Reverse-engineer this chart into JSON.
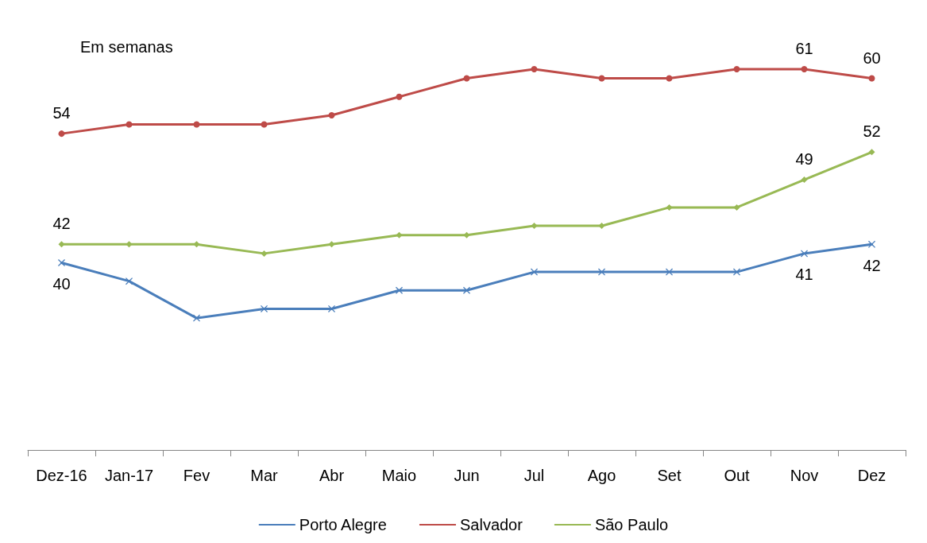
{
  "chart_data": {
    "type": "line",
    "categories": [
      "Dez-16",
      "Jan-17",
      "Fev",
      "Mar",
      "Abr",
      "Maio",
      "Jun",
      "Jul",
      "Ago",
      "Set",
      "Out",
      "Nov",
      "Dez"
    ],
    "series": [
      {
        "name": "Porto Alegre",
        "color": "#4a7ebb",
        "marker": "cross",
        "values": [
          40,
          38,
          34,
          35,
          35,
          37,
          37,
          39,
          39,
          39,
          39,
          41,
          42
        ],
        "value_labels": [
          "40",
          null,
          null,
          null,
          null,
          null,
          null,
          null,
          null,
          null,
          null,
          "41",
          "42"
        ]
      },
      {
        "name": "Salvador",
        "color": "#be4b48",
        "marker": "circle",
        "values": [
          54,
          55,
          55,
          55,
          56,
          58,
          60,
          61,
          60,
          60,
          61,
          61,
          60
        ],
        "value_labels": [
          "54",
          null,
          null,
          null,
          null,
          null,
          null,
          null,
          null,
          null,
          null,
          "61",
          "60"
        ]
      },
      {
        "name": "São Paulo",
        "color": "#98b954",
        "marker": "diamond",
        "values": [
          42,
          42,
          42,
          41,
          42,
          43,
          43,
          44,
          44,
          46,
          46,
          49,
          52
        ],
        "value_labels": [
          "42",
          null,
          null,
          null,
          null,
          null,
          null,
          null,
          null,
          null,
          null,
          "49",
          "52"
        ]
      }
    ],
    "tick_labels": "x",
    "grid": false,
    "legend": "bottom",
    "line_style": "solid",
    "annotations": [
      "Em semanas"
    ]
  }
}
